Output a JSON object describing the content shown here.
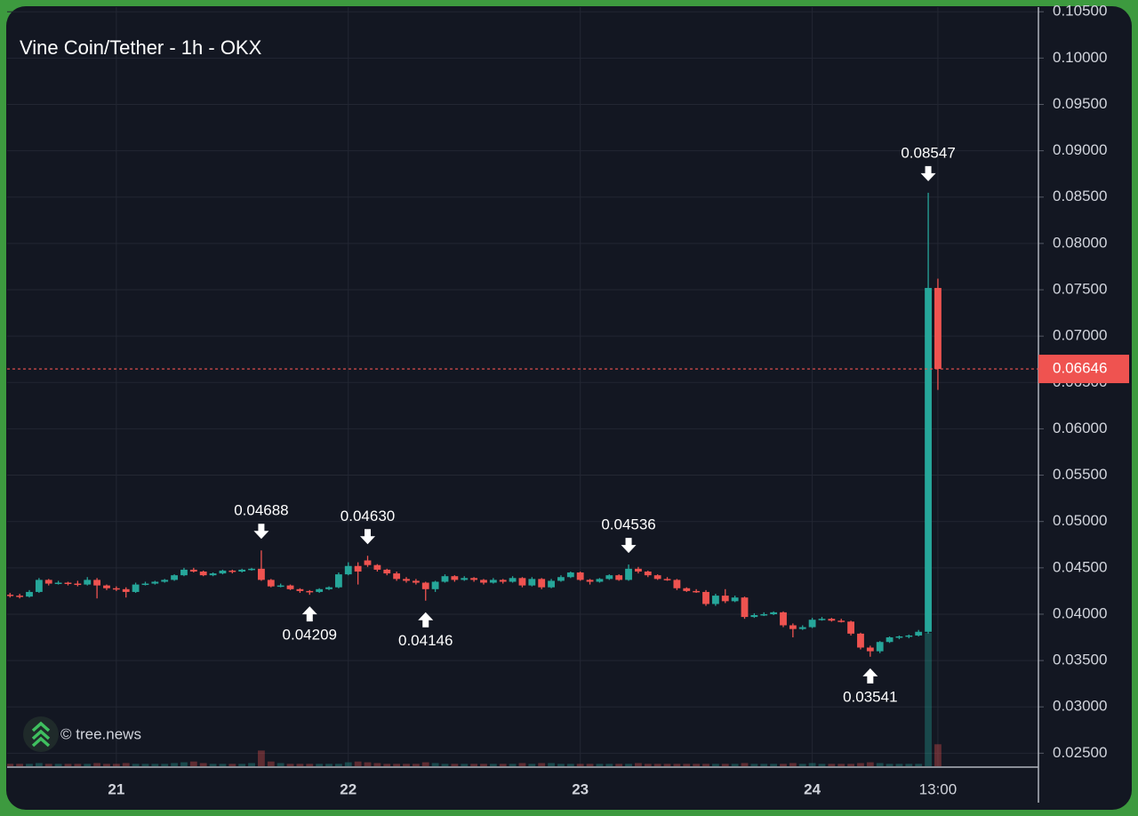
{
  "chart_data": {
    "type": "candlestick",
    "title": "Vine Coin/Tether - 1h - OKX",
    "watermark": "© tree.news",
    "up_color": "#26a69a",
    "down_color": "#ef5350",
    "grid": true,
    "x": [
      -11,
      -10,
      -9,
      -8,
      -7,
      -6,
      -5,
      -4,
      -3,
      -2,
      -1,
      0,
      1,
      2,
      3,
      4,
      5,
      6,
      7,
      8,
      9,
      10,
      11,
      12,
      13,
      14,
      15,
      16,
      17,
      18,
      19,
      20,
      21,
      22,
      23,
      24,
      25,
      26,
      27,
      28,
      29,
      30,
      31,
      32,
      33,
      34,
      35,
      36,
      37,
      38,
      39,
      40,
      41,
      42,
      43,
      44,
      45,
      46,
      47,
      48,
      49,
      50,
      51,
      52,
      53,
      54,
      55,
      56,
      57,
      58,
      59,
      60,
      61,
      62,
      63,
      64,
      65,
      66,
      67,
      68,
      69,
      70,
      71,
      72,
      73,
      74,
      75,
      76,
      77,
      78,
      79,
      80,
      81,
      82,
      83,
      84,
      85
    ],
    "open": [
      0.0421,
      0.042,
      0.0419,
      0.0424,
      0.0437,
      0.0433,
      0.0434,
      0.0433,
      0.0432,
      0.0437,
      0.0431,
      0.0428,
      0.0427,
      0.0424,
      0.0432,
      0.0433,
      0.0435,
      0.0437,
      0.0442,
      0.0448,
      0.0446,
      0.0442,
      0.0444,
      0.0447,
      0.0446,
      0.0448,
      0.0449,
      0.0437,
      0.043,
      0.0431,
      0.0427,
      0.0425,
      0.0424,
      0.0427,
      0.0429,
      0.0443,
      0.0452,
      0.0458,
      0.0453,
      0.0448,
      0.0444,
      0.0438,
      0.0436,
      0.0434,
      0.0427,
      0.0435,
      0.0441,
      0.0437,
      0.0439,
      0.0437,
      0.0434,
      0.0437,
      0.0435,
      0.0439,
      0.0431,
      0.0438,
      0.0429,
      0.0436,
      0.044,
      0.0445,
      0.0437,
      0.0435,
      0.0438,
      0.0442,
      0.0437,
      0.0449,
      0.0446,
      0.0442,
      0.0438,
      0.0437,
      0.0428,
      0.0425,
      0.0424,
      0.0411,
      0.042,
      0.0414,
      0.0418,
      0.0397,
      0.0399,
      0.04,
      0.0402,
      0.0388,
      0.0384,
      0.0386,
      0.0394,
      0.0395,
      0.0393,
      0.0392,
      0.0379,
      0.0364,
      0.036,
      0.037,
      0.0375,
      0.0376,
      0.0377,
      0.0381,
      0.0752
    ],
    "high": [
      0.0423,
      0.0422,
      0.0426,
      0.0439,
      0.0438,
      0.0436,
      0.0435,
      0.0436,
      0.044,
      0.0439,
      0.0432,
      0.043,
      0.0429,
      0.0434,
      0.0435,
      0.0436,
      0.0438,
      0.0443,
      0.045,
      0.045,
      0.0447,
      0.0445,
      0.0448,
      0.0448,
      0.0449,
      0.045,
      0.04688,
      0.0438,
      0.0433,
      0.0432,
      0.0428,
      0.0426,
      0.0428,
      0.043,
      0.0445,
      0.0456,
      0.0456,
      0.0463,
      0.0454,
      0.0449,
      0.0446,
      0.044,
      0.0438,
      0.0435,
      0.0436,
      0.0443,
      0.0442,
      0.0441,
      0.044,
      0.0438,
      0.0439,
      0.0438,
      0.0441,
      0.044,
      0.044,
      0.0439,
      0.0438,
      0.0442,
      0.0446,
      0.0446,
      0.0438,
      0.0439,
      0.0443,
      0.0443,
      0.04536,
      0.0451,
      0.0447,
      0.0443,
      0.044,
      0.0438,
      0.0429,
      0.0427,
      0.0426,
      0.0422,
      0.0427,
      0.042,
      0.0419,
      0.0401,
      0.0402,
      0.0403,
      0.0403,
      0.039,
      0.0388,
      0.0396,
      0.0397,
      0.0396,
      0.0395,
      0.0393,
      0.038,
      0.0366,
      0.0371,
      0.0376,
      0.0377,
      0.0378,
      0.0383,
      0.08547,
      0.0762
    ],
    "low": [
      0.0418,
      0.0417,
      0.0418,
      0.0423,
      0.0431,
      0.0432,
      0.0431,
      0.043,
      0.0431,
      0.0417,
      0.0426,
      0.0425,
      0.0418,
      0.0423,
      0.0431,
      0.0432,
      0.0434,
      0.0436,
      0.0441,
      0.0445,
      0.0441,
      0.0441,
      0.0443,
      0.0444,
      0.0445,
      0.0447,
      0.0436,
      0.0429,
      0.0429,
      0.0426,
      0.0423,
      0.04209,
      0.0423,
      0.0426,
      0.0428,
      0.0442,
      0.0432,
      0.0451,
      0.0446,
      0.0442,
      0.0436,
      0.0434,
      0.0432,
      0.04146,
      0.0424,
      0.0434,
      0.0435,
      0.0436,
      0.0435,
      0.0432,
      0.0433,
      0.0433,
      0.0434,
      0.0429,
      0.043,
      0.0427,
      0.0428,
      0.0435,
      0.0439,
      0.0436,
      0.0432,
      0.0434,
      0.0437,
      0.0436,
      0.0436,
      0.0444,
      0.044,
      0.0437,
      0.0436,
      0.0426,
      0.0424,
      0.0423,
      0.0409,
      0.0409,
      0.0412,
      0.0413,
      0.0395,
      0.0396,
      0.0398,
      0.0399,
      0.0386,
      0.0375,
      0.0383,
      0.0385,
      0.0393,
      0.0392,
      0.0391,
      0.0377,
      0.0362,
      0.03541,
      0.0358,
      0.0369,
      0.0373,
      0.0374,
      0.0376,
      0.0379,
      0.0642
    ],
    "close": [
      0.042,
      0.0419,
      0.0424,
      0.0437,
      0.0433,
      0.0434,
      0.0433,
      0.0432,
      0.0437,
      0.0431,
      0.0428,
      0.0427,
      0.0424,
      0.0432,
      0.0433,
      0.0435,
      0.0437,
      0.0442,
      0.0448,
      0.0446,
      0.0442,
      0.0444,
      0.0447,
      0.0446,
      0.0448,
      0.0449,
      0.0437,
      0.043,
      0.0431,
      0.0427,
      0.0425,
      0.0424,
      0.0427,
      0.0429,
      0.0443,
      0.0452,
      0.0446,
      0.0453,
      0.0448,
      0.0444,
      0.0438,
      0.0436,
      0.0434,
      0.0427,
      0.0435,
      0.0441,
      0.0437,
      0.0439,
      0.0437,
      0.0434,
      0.0437,
      0.0435,
      0.0439,
      0.0431,
      0.0438,
      0.0429,
      0.0436,
      0.044,
      0.0445,
      0.0437,
      0.0435,
      0.0438,
      0.0442,
      0.0437,
      0.0449,
      0.0446,
      0.0442,
      0.0438,
      0.0437,
      0.0428,
      0.0425,
      0.0424,
      0.0411,
      0.042,
      0.0414,
      0.0418,
      0.0397,
      0.0399,
      0.04,
      0.0402,
      0.0388,
      0.0384,
      0.0386,
      0.0394,
      0.0395,
      0.0393,
      0.0392,
      0.0379,
      0.0364,
      0.036,
      0.037,
      0.0375,
      0.0376,
      0.0377,
      0.0381,
      0.0752,
      0.06646
    ],
    "volume": [
      3,
      3,
      3,
      4,
      3,
      3,
      3,
      3,
      3,
      4,
      3,
      3,
      4,
      3,
      3,
      3,
      3,
      4,
      5,
      6,
      4,
      3,
      3,
      3,
      3,
      4,
      20,
      6,
      4,
      3,
      3,
      3,
      3,
      3,
      3,
      5,
      6,
      5,
      4,
      3,
      3,
      3,
      3,
      5,
      4,
      3,
      3,
      3,
      3,
      3,
      3,
      3,
      3,
      4,
      3,
      4,
      4,
      3,
      3,
      3,
      3,
      3,
      3,
      3,
      3,
      4,
      3,
      3,
      3,
      3,
      3,
      3,
      3,
      3,
      3,
      3,
      4,
      3,
      3,
      3,
      3,
      4,
      3,
      4,
      3,
      3,
      3,
      3,
      4,
      5,
      4,
      3,
      3,
      3,
      3,
      170,
      28
    ],
    "xlim": [
      -11.3,
      95.4
    ],
    "xticks": [
      {
        "value": 0,
        "label": "21"
      },
      {
        "value": 24,
        "label": "22"
      },
      {
        "value": 48,
        "label": "23"
      },
      {
        "value": 72,
        "label": "24"
      },
      {
        "value": 85,
        "label": "13:00"
      }
    ],
    "ylim": [
      0.0235,
      0.1055
    ],
    "yticks": [
      {
        "value": 0.025,
        "label": "0.02500"
      },
      {
        "value": 0.03,
        "label": "0.03000"
      },
      {
        "value": 0.035,
        "label": "0.03500"
      },
      {
        "value": 0.04,
        "label": "0.04000"
      },
      {
        "value": 0.045,
        "label": "0.04500"
      },
      {
        "value": 0.05,
        "label": "0.05000"
      },
      {
        "value": 0.055,
        "label": "0.05500"
      },
      {
        "value": 0.06,
        "label": "0.06000"
      },
      {
        "value": 0.065,
        "label": "0.06500"
      },
      {
        "value": 0.07,
        "label": "0.07000"
      },
      {
        "value": 0.075,
        "label": "0.07500"
      },
      {
        "value": 0.08,
        "label": "0.08000"
      },
      {
        "value": 0.085,
        "label": "0.08500"
      },
      {
        "value": 0.09,
        "label": "0.09000"
      },
      {
        "value": 0.095,
        "label": "0.09500"
      },
      {
        "value": 0.1,
        "label": "0.10000"
      },
      {
        "value": 0.105,
        "label": "0.10500"
      }
    ],
    "last_price": {
      "value": 0.06646,
      "label": "0.06646"
    },
    "annotations": [
      {
        "label": "0.04688",
        "value": 0.04688,
        "x": 15,
        "dir": "down"
      },
      {
        "label": "0.04209",
        "value": 0.04209,
        "x": 20,
        "dir": "up"
      },
      {
        "label": "0.04630",
        "value": 0.0463,
        "x": 26,
        "dir": "down"
      },
      {
        "label": "0.04146",
        "value": 0.04146,
        "x": 32,
        "dir": "up"
      },
      {
        "label": "0.04536",
        "value": 0.04536,
        "x": 53,
        "dir": "down"
      },
      {
        "label": "0.03541",
        "value": 0.03541,
        "x": 78,
        "dir": "up"
      },
      {
        "label": "0.08547",
        "value": 0.08547,
        "x": 84,
        "dir": "down"
      }
    ]
  }
}
